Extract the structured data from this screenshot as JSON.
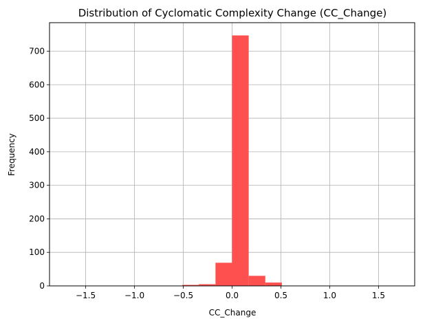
{
  "chart_data": {
    "type": "bar",
    "title": "Distribution of Cyclomatic Complexity Change (CC_Change)",
    "xlabel": "CC_Change",
    "ylabel": "Frequency",
    "xlim": [
      -1.87,
      1.87
    ],
    "ylim": [
      0,
      785
    ],
    "xticks": [
      -1.5,
      -1.0,
      -0.5,
      0.0,
      0.5,
      1.0,
      1.5
    ],
    "xtick_labels": [
      "−1.5",
      "−1.0",
      "−0.5",
      "0.0",
      "0.5",
      "1.0",
      "1.5"
    ],
    "yticks": [
      0,
      100,
      200,
      300,
      400,
      500,
      600,
      700
    ],
    "ytick_labels": [
      "0",
      "100",
      "200",
      "300",
      "400",
      "500",
      "600",
      "700"
    ],
    "grid": true,
    "bar_color": "#ff4c4c",
    "bins": [
      {
        "x0": -1.7,
        "x1": -1.53,
        "value": 1
      },
      {
        "x0": -1.53,
        "x1": -1.36,
        "value": 1
      },
      {
        "x0": -1.36,
        "x1": -1.19,
        "value": 0
      },
      {
        "x0": -1.19,
        "x1": -1.02,
        "value": 0
      },
      {
        "x0": -1.02,
        "x1": -0.85,
        "value": 1
      },
      {
        "x0": -0.85,
        "x1": -0.68,
        "value": 1
      },
      {
        "x0": -0.68,
        "x1": -0.51,
        "value": 0
      },
      {
        "x0": -0.51,
        "x1": -0.34,
        "value": 3
      },
      {
        "x0": -0.34,
        "x1": -0.17,
        "value": 5
      },
      {
        "x0": -0.17,
        "x1": 0.0,
        "value": 69
      },
      {
        "x0": 0.0,
        "x1": 0.17,
        "value": 747
      },
      {
        "x0": 0.17,
        "x1": 0.34,
        "value": 30
      },
      {
        "x0": 0.34,
        "x1": 0.51,
        "value": 10
      },
      {
        "x0": 0.51,
        "x1": 0.68,
        "value": 1
      },
      {
        "x0": 0.68,
        "x1": 0.85,
        "value": 0
      },
      {
        "x0": 0.85,
        "x1": 1.02,
        "value": 1
      },
      {
        "x0": 1.02,
        "x1": 1.19,
        "value": 0
      },
      {
        "x0": 1.19,
        "x1": 1.36,
        "value": 0
      },
      {
        "x0": 1.36,
        "x1": 1.53,
        "value": 0
      },
      {
        "x0": 1.53,
        "x1": 1.7,
        "value": 1
      }
    ]
  }
}
